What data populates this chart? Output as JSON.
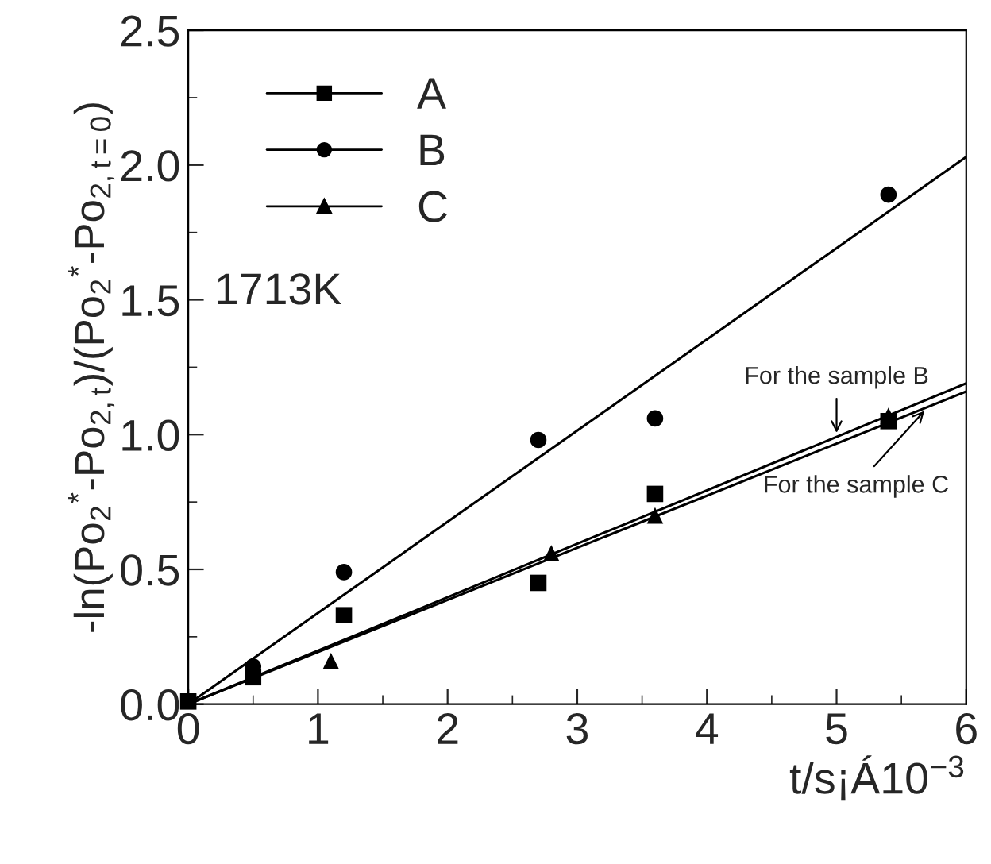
{
  "chart_data": {
    "type": "scatter",
    "xlabel": "t/s¡Á10$^{−3}$",
    "ylabel": "-ln(Po$_{2}$$^{*}$-Po$_{2,t}$)/(Po$_{2}$$^{*}$-Po$_{2,t=0}$)",
    "xlim": [
      0,
      6
    ],
    "ylim": [
      0,
      2.5
    ],
    "xticks": [
      0,
      {
        "value": 0.5,
        "label": null
      },
      1,
      {
        "value": 1.5,
        "label": null
      },
      2,
      {
        "value": 2.5,
        "label": null
      },
      3,
      {
        "value": 3.5,
        "label": null
      },
      4,
      {
        "value": 4.5,
        "label": null
      },
      5,
      {
        "value": 5.5,
        "label": null
      },
      6
    ],
    "yticks": [
      {
        "value": 0,
        "label": "0.0"
      },
      {
        "value": 0.25,
        "label": null
      },
      {
        "value": 0.5,
        "label": "0.5"
      },
      {
        "value": 0.75,
        "label": null
      },
      {
        "value": 1.0,
        "label": "1.0"
      },
      {
        "value": 1.25,
        "label": null
      },
      {
        "value": 1.5,
        "label": "1.5"
      },
      {
        "value": 1.75,
        "label": null
      },
      {
        "value": 2.0,
        "label": "2.0"
      },
      {
        "value": 2.25,
        "label": null
      },
      {
        "value": 2.5,
        "label": "2.5"
      }
    ],
    "grid": false,
    "legend": "top left",
    "series": [
      {
        "name": "A",
        "marker": "square",
        "color": "#000000",
        "x": [
          0,
          0.5,
          1.2,
          2.7,
          3.6,
          5.4
        ],
        "values": [
          0.01,
          0.1,
          0.33,
          0.45,
          0.78,
          1.05
        ]
      },
      {
        "name": "B",
        "marker": "circle",
        "color": "#000000",
        "x": [
          0.5,
          1.2,
          2.7,
          3.6,
          5.4
        ],
        "values": [
          0.14,
          0.49,
          0.98,
          1.06,
          1.89
        ]
      },
      {
        "name": "C",
        "marker": "triangle",
        "color": "#000000",
        "x": [
          1.1,
          2.8,
          3.6,
          5.4
        ],
        "values": [
          0.16,
          0.56,
          0.7,
          1.07
        ]
      },
      {
        "type": "line",
        "line_style": "solid",
        "color": "#000000",
        "x": [
          0,
          6
        ],
        "values": [
          0,
          2.03
        ]
      },
      {
        "type": "line",
        "line_style": "solid",
        "color": "#000000",
        "x": [
          0,
          6
        ],
        "values": [
          0,
          1.19
        ]
      },
      {
        "type": "line",
        "line_style": "solid",
        "color": "#000000",
        "x": [
          0,
          6
        ],
        "values": [
          0,
          1.16
        ]
      }
    ],
    "annotations": [
      "1713K",
      {
        "text": "For the sample B",
        "x": 5.0,
        "y": 0.99
      },
      {
        "text": "For the sample C",
        "x": 5.7,
        "y": 1.1
      }
    ]
  }
}
